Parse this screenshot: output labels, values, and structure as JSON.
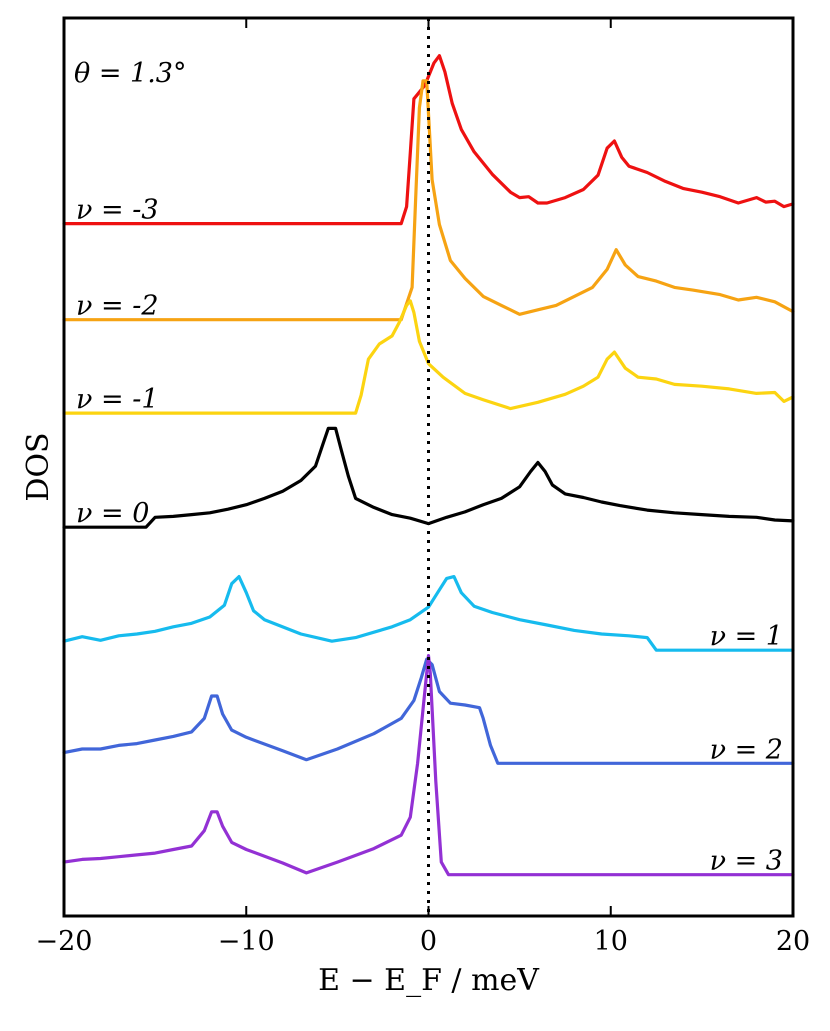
{
  "chart_data": {
    "type": "line",
    "title": "",
    "annotation": "θ = 1.3°",
    "xlabel": "E − E_F / meV",
    "ylabel": "DOS",
    "xlim": [
      -20,
      20
    ],
    "ylim": [
      0,
      1
    ],
    "x_ticks": [
      -20,
      -10,
      0,
      10,
      20
    ],
    "x_tick_labels": [
      "−20",
      "−10",
      "0",
      "10",
      "20"
    ],
    "y_ticks": [],
    "grid": false,
    "reference_line": {
      "x": 0,
      "style": "dotted",
      "color": "#000000"
    },
    "series": [
      {
        "name": "ν = -3",
        "label": "ν = -3",
        "label_side": "left",
        "color": "#ee1111",
        "points": [
          [
            -20,
            0.771
          ],
          [
            -15,
            0.771
          ],
          [
            -1.5,
            0.771
          ],
          [
            -1.2,
            0.79
          ],
          [
            -1.0,
            0.85
          ],
          [
            -0.8,
            0.91
          ],
          [
            -0.6,
            0.915
          ],
          [
            -0.2,
            0.925
          ],
          [
            0,
            0.935
          ],
          [
            0.3,
            0.95
          ],
          [
            0.6,
            0.958
          ],
          [
            0.9,
            0.94
          ],
          [
            1.3,
            0.905
          ],
          [
            1.8,
            0.876
          ],
          [
            2.5,
            0.851
          ],
          [
            3.5,
            0.826
          ],
          [
            4.5,
            0.806
          ],
          [
            5.0,
            0.8
          ],
          [
            5.5,
            0.801
          ],
          [
            6.0,
            0.794
          ],
          [
            6.5,
            0.794
          ],
          [
            7.5,
            0.8
          ],
          [
            8.5,
            0.809
          ],
          [
            9.3,
            0.825
          ],
          [
            9.8,
            0.855
          ],
          [
            10.2,
            0.863
          ],
          [
            10.6,
            0.845
          ],
          [
            11.0,
            0.835
          ],
          [
            12.0,
            0.828
          ],
          [
            13.0,
            0.818
          ],
          [
            14.0,
            0.81
          ],
          [
            15.0,
            0.806
          ],
          [
            16.0,
            0.801
          ],
          [
            17.0,
            0.794
          ],
          [
            18.0,
            0.8
          ],
          [
            18.5,
            0.795
          ],
          [
            19.0,
            0.796
          ],
          [
            19.5,
            0.79
          ],
          [
            20.0,
            0.793
          ]
        ]
      },
      {
        "name": "ν = -2",
        "label": "ν = -2",
        "label_side": "left",
        "color": "#f6a313",
        "points": [
          [
            -20,
            0.664
          ],
          [
            -1.5,
            0.664
          ],
          [
            -0.9,
            0.7
          ],
          [
            -0.7,
            0.8
          ],
          [
            -0.5,
            0.9
          ],
          [
            -0.3,
            0.93
          ],
          [
            -0.1,
            0.93
          ],
          [
            0.2,
            0.82
          ],
          [
            0.6,
            0.77
          ],
          [
            1.2,
            0.73
          ],
          [
            2.0,
            0.71
          ],
          [
            3.0,
            0.69
          ],
          [
            4.0,
            0.68
          ],
          [
            5.0,
            0.67
          ],
          [
            6.0,
            0.675
          ],
          [
            7.0,
            0.68
          ],
          [
            8.0,
            0.69
          ],
          [
            9.0,
            0.7
          ],
          [
            9.8,
            0.72
          ],
          [
            10.3,
            0.742
          ],
          [
            10.8,
            0.725
          ],
          [
            11.5,
            0.712
          ],
          [
            12.5,
            0.707
          ],
          [
            13.5,
            0.7
          ],
          [
            14.5,
            0.697
          ],
          [
            16.0,
            0.692
          ],
          [
            17.0,
            0.686
          ],
          [
            18.0,
            0.689
          ],
          [
            19.0,
            0.684
          ],
          [
            20.0,
            0.673
          ]
        ]
      },
      {
        "name": "ν = -1",
        "label": "ν = -1",
        "label_side": "left",
        "color": "#fcd411",
        "points": [
          [
            -20,
            0.56
          ],
          [
            -4.0,
            0.56
          ],
          [
            -3.7,
            0.58
          ],
          [
            -3.3,
            0.62
          ],
          [
            -2.7,
            0.637
          ],
          [
            -2.0,
            0.646
          ],
          [
            -1.6,
            0.661
          ],
          [
            -1.2,
            0.68
          ],
          [
            -1.0,
            0.685
          ],
          [
            -0.8,
            0.672
          ],
          [
            -0.5,
            0.64
          ],
          [
            0,
            0.615
          ],
          [
            0.8,
            0.6
          ],
          [
            2.0,
            0.582
          ],
          [
            3.0,
            0.575
          ],
          [
            4.5,
            0.565
          ],
          [
            6.0,
            0.572
          ],
          [
            7.5,
            0.581
          ],
          [
            8.5,
            0.59
          ],
          [
            9.3,
            0.6
          ],
          [
            9.8,
            0.62
          ],
          [
            10.2,
            0.628
          ],
          [
            10.8,
            0.61
          ],
          [
            11.5,
            0.6
          ],
          [
            12.5,
            0.598
          ],
          [
            13.5,
            0.592
          ],
          [
            15.0,
            0.59
          ],
          [
            16.5,
            0.587
          ],
          [
            18.0,
            0.582
          ],
          [
            19.0,
            0.583
          ],
          [
            19.5,
            0.573
          ],
          [
            20.0,
            0.578
          ]
        ]
      },
      {
        "name": "ν = 0",
        "label": "ν = 0",
        "label_side": "left",
        "color": "#000000",
        "points": [
          [
            -20,
            0.433
          ],
          [
            -15.5,
            0.433
          ],
          [
            -15,
            0.444
          ],
          [
            -14,
            0.445
          ],
          [
            -13,
            0.447
          ],
          [
            -12,
            0.449
          ],
          [
            -11,
            0.453
          ],
          [
            -10,
            0.458
          ],
          [
            -9,
            0.465
          ],
          [
            -8,
            0.473
          ],
          [
            -7,
            0.485
          ],
          [
            -6.2,
            0.501
          ],
          [
            -5.8,
            0.525
          ],
          [
            -5.5,
            0.543
          ],
          [
            -5.1,
            0.543
          ],
          [
            -4.8,
            0.52
          ],
          [
            -4.4,
            0.49
          ],
          [
            -4.0,
            0.465
          ],
          [
            -3.0,
            0.455
          ],
          [
            -2.0,
            0.447
          ],
          [
            -1.0,
            0.443
          ],
          [
            0,
            0.437
          ],
          [
            1.0,
            0.444
          ],
          [
            2.0,
            0.45
          ],
          [
            3.0,
            0.458
          ],
          [
            4.0,
            0.465
          ],
          [
            5.0,
            0.478
          ],
          [
            5.6,
            0.495
          ],
          [
            6.0,
            0.505
          ],
          [
            6.4,
            0.495
          ],
          [
            6.8,
            0.48
          ],
          [
            7.5,
            0.47
          ],
          [
            8.5,
            0.466
          ],
          [
            9.5,
            0.461
          ],
          [
            10.5,
            0.457
          ],
          [
            12.0,
            0.452
          ],
          [
            13.5,
            0.449
          ],
          [
            15.0,
            0.447
          ],
          [
            16.5,
            0.445
          ],
          [
            18.0,
            0.444
          ],
          [
            19.0,
            0.441
          ],
          [
            20.0,
            0.44
          ]
        ]
      },
      {
        "name": "ν = 1",
        "label": "ν = 1",
        "label_side": "right",
        "color": "#16bbee",
        "points": [
          [
            -20,
            0.306
          ],
          [
            -19,
            0.311
          ],
          [
            -18,
            0.307
          ],
          [
            -17,
            0.312
          ],
          [
            -16,
            0.314
          ],
          [
            -15,
            0.317
          ],
          [
            -14,
            0.322
          ],
          [
            -13,
            0.326
          ],
          [
            -12,
            0.333
          ],
          [
            -11.2,
            0.346
          ],
          [
            -10.8,
            0.37
          ],
          [
            -10.4,
            0.378
          ],
          [
            -10.0,
            0.36
          ],
          [
            -9.6,
            0.34
          ],
          [
            -9.0,
            0.33
          ],
          [
            -7.0,
            0.314
          ],
          [
            -5.3,
            0.306
          ],
          [
            -4.0,
            0.31
          ],
          [
            -2.0,
            0.322
          ],
          [
            -1.0,
            0.33
          ],
          [
            0,
            0.344
          ],
          [
            0.5,
            0.36
          ],
          [
            1.0,
            0.376
          ],
          [
            1.4,
            0.378
          ],
          [
            1.8,
            0.36
          ],
          [
            2.5,
            0.345
          ],
          [
            3.5,
            0.338
          ],
          [
            5.0,
            0.33
          ],
          [
            6.5,
            0.324
          ],
          [
            8.0,
            0.318
          ],
          [
            9.5,
            0.314
          ],
          [
            11.0,
            0.312
          ],
          [
            12.0,
            0.31
          ],
          [
            12.5,
            0.296
          ],
          [
            20.0,
            0.296
          ]
        ]
      },
      {
        "name": "ν = 2",
        "label": "ν = 2",
        "label_side": "right",
        "color": "#4166d9",
        "points": [
          [
            -20,
            0.182
          ],
          [
            -19,
            0.186
          ],
          [
            -18,
            0.186
          ],
          [
            -17,
            0.19
          ],
          [
            -16,
            0.192
          ],
          [
            -15,
            0.196
          ],
          [
            -14,
            0.2
          ],
          [
            -13,
            0.205
          ],
          [
            -12.3,
            0.22
          ],
          [
            -11.9,
            0.245
          ],
          [
            -11.6,
            0.245
          ],
          [
            -11.3,
            0.225
          ],
          [
            -10.8,
            0.207
          ],
          [
            -10.0,
            0.199
          ],
          [
            -8.0,
            0.184
          ],
          [
            -6.7,
            0.174
          ],
          [
            -5.0,
            0.186
          ],
          [
            -3.0,
            0.203
          ],
          [
            -1.5,
            0.22
          ],
          [
            -0.8,
            0.24
          ],
          [
            -0.4,
            0.265
          ],
          [
            -0.1,
            0.286
          ],
          [
            0.2,
            0.28
          ],
          [
            0.6,
            0.25
          ],
          [
            1.2,
            0.237
          ],
          [
            2.0,
            0.235
          ],
          [
            2.8,
            0.232
          ],
          [
            3.0,
            0.22
          ],
          [
            3.4,
            0.19
          ],
          [
            3.8,
            0.17
          ],
          [
            20.0,
            0.17
          ]
        ]
      },
      {
        "name": "ν = 3",
        "label": "ν = 3",
        "label_side": "right",
        "color": "#9331d4",
        "points": [
          [
            -20,
            0.06
          ],
          [
            -19,
            0.063
          ],
          [
            -18,
            0.064
          ],
          [
            -17,
            0.066
          ],
          [
            -16,
            0.068
          ],
          [
            -15,
            0.07
          ],
          [
            -14,
            0.074
          ],
          [
            -13,
            0.078
          ],
          [
            -12.3,
            0.095
          ],
          [
            -11.9,
            0.116
          ],
          [
            -11.6,
            0.116
          ],
          [
            -11.3,
            0.1
          ],
          [
            -10.8,
            0.082
          ],
          [
            -10.0,
            0.074
          ],
          [
            -8.0,
            0.059
          ],
          [
            -6.7,
            0.048
          ],
          [
            -5.0,
            0.06
          ],
          [
            -3.0,
            0.075
          ],
          [
            -1.5,
            0.09
          ],
          [
            -1.0,
            0.11
          ],
          [
            -0.6,
            0.17
          ],
          [
            -0.3,
            0.23
          ],
          [
            0,
            0.29
          ],
          [
            0.1,
            0.27
          ],
          [
            0.4,
            0.15
          ],
          [
            0.7,
            0.06
          ],
          [
            1.1,
            0.046
          ],
          [
            20.0,
            0.046
          ]
        ]
      }
    ]
  }
}
